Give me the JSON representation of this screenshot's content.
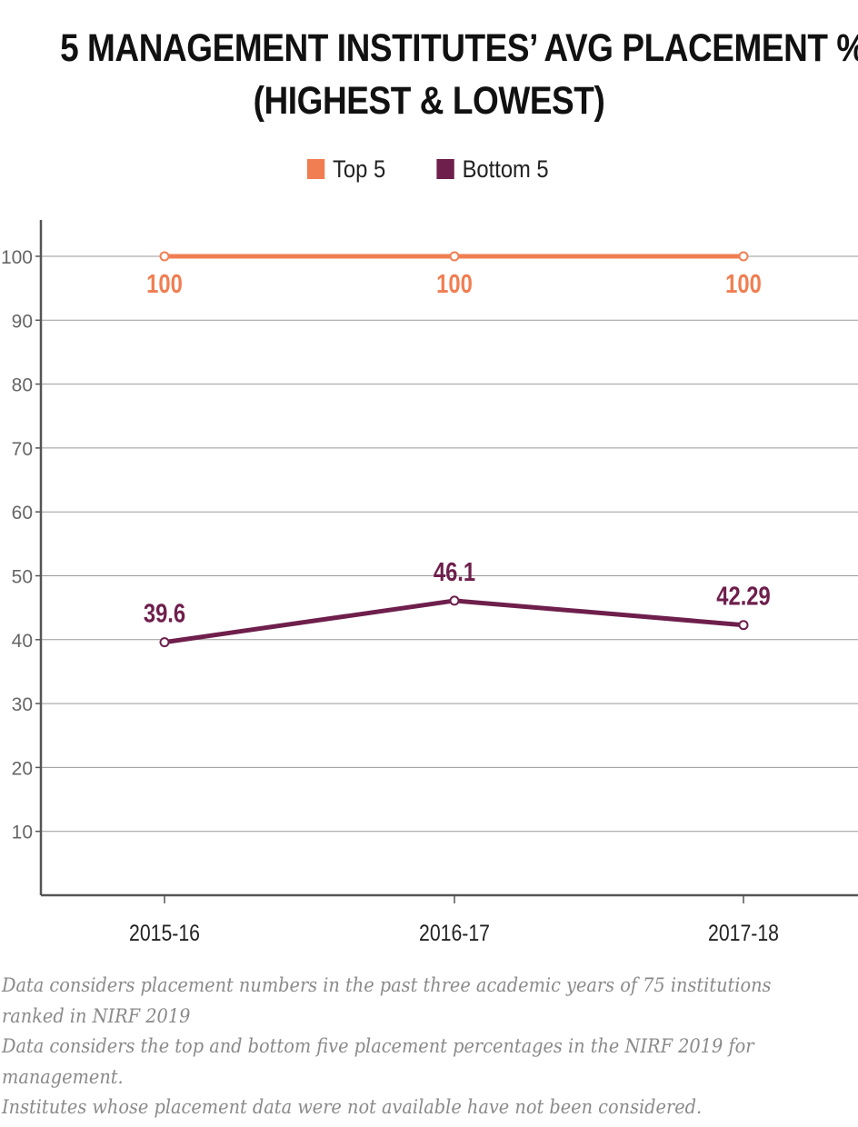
{
  "chart_data": {
    "type": "line",
    "title_lines": [
      "5 MANAGEMENT INSTITUTES’ AVG PLACEMENT %",
      "(HIGHEST & LOWEST)"
    ],
    "categories": [
      "2015-16",
      "2016-17",
      "2017-18"
    ],
    "series": [
      {
        "name": "Top 5",
        "values": [
          100,
          100,
          100
        ],
        "labels": [
          "100",
          "100",
          "100"
        ],
        "color": "#F07E52"
      },
      {
        "name": "Bottom 5",
        "values": [
          39.6,
          46.1,
          42.29
        ],
        "labels": [
          "39.6",
          "46.1",
          "42.29"
        ],
        "color": "#6E1F4C"
      }
    ],
    "yticks": [
      10,
      20,
      30,
      40,
      50,
      60,
      70,
      80,
      90,
      100
    ],
    "ylim": [
      0,
      105
    ],
    "grid": true,
    "legend_position": "top-center",
    "xlabel": "",
    "ylabel": ""
  },
  "notes": [
    "Data considers placement numbers in the past three academic years of 75 institutions",
    "ranked in NIRF 2019",
    "Data considers the top and bottom five placement percentages in the NIRF 2019 for",
    "management.",
    "Institutes whose placement data were not available have not been considered."
  ]
}
